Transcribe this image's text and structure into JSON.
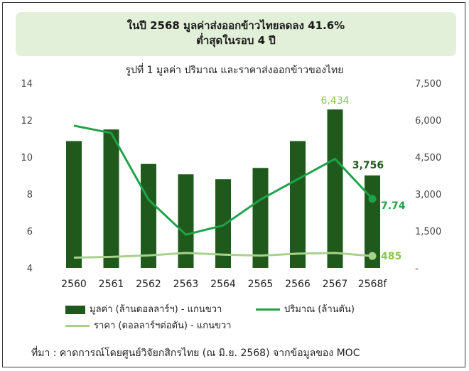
{
  "header": {
    "line1": "ในปี 2568 มูลค่าส่งออกข้าวไทยลดลง 41.6%",
    "line2": "ต่ำสุดในรอบ 4 ปี"
  },
  "source_note": "ที่มา : คาดการณ์โดยศูนย์วิจัยกสิกรไทย (ณ มิ.ย. 2568) จากข้อมูลของ MOC",
  "colors": {
    "bar": "#1f5a1c",
    "volume_line": "#1ea34a",
    "price_line": "#a9d18e",
    "label_volume": "#1ea34a",
    "label_price": "#8cc54f",
    "label_bar_peak": "#8cc54f",
    "label_bar_last": "#1f5a1c",
    "banner_bg": "#e2f0d9"
  },
  "chart_data": {
    "type": "bar",
    "title": "รูปที่ 1 มูลค่า ปริมาณ และราคาส่งออกข้าวของไทย",
    "categories": [
      "2560",
      "2561",
      "2562",
      "2563",
      "2564",
      "2565",
      "2566",
      "2567",
      "2568f"
    ],
    "left_axis": {
      "ticks": [
        "4",
        "6",
        "8",
        "10",
        "12",
        "14"
      ],
      "range": [
        4,
        14
      ]
    },
    "right_axis": {
      "ticks": [
        "-",
        "1,500",
        "3,000",
        "4,500",
        "6,000",
        "7,500"
      ],
      "range": [
        0,
        7500
      ]
    },
    "legend_position": "bottom",
    "grid": false,
    "series": [
      {
        "name": "มูลค่า (ล้านดอลลาร์ฯ) - แกนขวา",
        "kind": "bar",
        "axis": "right",
        "values": [
          5150,
          5620,
          4220,
          3800,
          3600,
          4060,
          5150,
          6434,
          3756
        ],
        "labels": {
          "7": "6,434",
          "8": "3,756"
        }
      },
      {
        "name": "ปริมาณ (ล้านตัน)",
        "kind": "line",
        "axis": "left",
        "values": [
          11.7,
          11.3,
          7.7,
          5.8,
          6.3,
          7.7,
          8.8,
          9.9,
          7.74
        ],
        "labels": {
          "8": "7.74"
        }
      },
      {
        "name": "ราคา (ดอลลาร์ฯต่อตัน) - แกนขวา",
        "kind": "line",
        "axis": "right",
        "values": [
          420,
          450,
          510,
          610,
          540,
          500,
          580,
          610,
          485
        ],
        "labels": {
          "8": "485"
        }
      }
    ]
  }
}
